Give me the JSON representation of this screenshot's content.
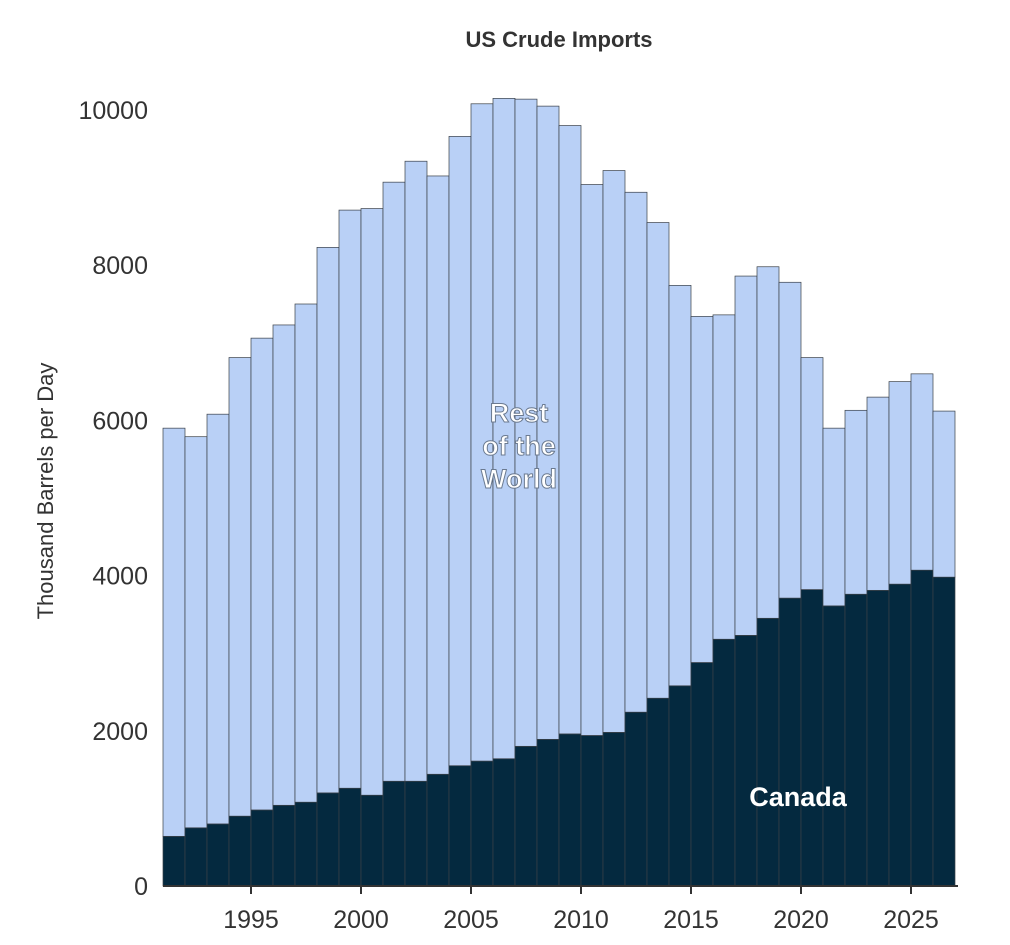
{
  "chart_data": {
    "type": "bar",
    "stacked": true,
    "title": "US Crude Imports",
    "xlabel": "",
    "ylabel": "Thousand Barrels per Day",
    "ylim": [
      0,
      10000
    ],
    "xlim": [
      1991,
      2027
    ],
    "y_ticks": [
      "0",
      "2000",
      "4000",
      "6000",
      "8000",
      "10000"
    ],
    "x_ticks": [
      "1995",
      "2000",
      "2005",
      "2010",
      "2015",
      "2020",
      "2025"
    ],
    "years": [
      1991,
      1992,
      1993,
      1994,
      1995,
      1996,
      1997,
      1998,
      1999,
      2000,
      2001,
      2002,
      2003,
      2004,
      2005,
      2006,
      2007,
      2008,
      2009,
      2010,
      2011,
      2012,
      2013,
      2014,
      2015,
      2016,
      2017,
      2018,
      2019,
      2020,
      2021,
      2022,
      2023,
      2024,
      2025,
      2026
    ],
    "series": [
      {
        "name": "Canada",
        "color": "#04293f",
        "values": [
          640,
          750,
          800,
          900,
          980,
          1040,
          1080,
          1200,
          1260,
          1170,
          1350,
          1350,
          1440,
          1550,
          1610,
          1640,
          1800,
          1890,
          1960,
          1940,
          1980,
          2240,
          2420,
          2580,
          2880,
          3180,
          3230,
          3450,
          3710,
          3820,
          3610,
          3760,
          3810,
          3890,
          4070,
          3980
        ]
      },
      {
        "name": "Rest of the World",
        "color": "#b9d0f6",
        "values": [
          5260,
          5040,
          5280,
          5910,
          6080,
          6190,
          6420,
          7030,
          7450,
          7560,
          7720,
          7990,
          7710,
          8110,
          8470,
          8510,
          8340,
          8160,
          7840,
          7100,
          7240,
          6700,
          6130,
          5160,
          4460,
          4180,
          4630,
          4530,
          4070,
          2990,
          2290,
          2370,
          2490,
          2610,
          2530,
          2140
        ]
      }
    ],
    "annotations": {
      "rest_label": [
        "Rest",
        "of the",
        "World"
      ],
      "canada_label": "Canada"
    }
  }
}
